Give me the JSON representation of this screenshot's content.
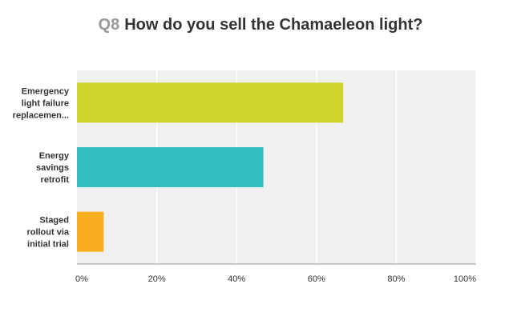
{
  "header": {
    "question_number": "Q8",
    "question_text": "How do you sell the Chamaeleon light?"
  },
  "chart_data": {
    "type": "bar",
    "orientation": "horizontal",
    "title": "Q8 How do you sell the Chamaeleon light?",
    "categories": [
      [
        "Emergency",
        "light failure",
        "replacemen..."
      ],
      [
        "Energy",
        "savings",
        "retrofit"
      ],
      [
        "Staged",
        "rollout via",
        "initial trial"
      ]
    ],
    "values": [
      66.7,
      46.7,
      6.7
    ],
    "colors": [
      "#cfd42b",
      "#33bfbf",
      "#f9ae22"
    ],
    "xlim": [
      0,
      100
    ],
    "ticks": [
      0,
      20,
      40,
      60,
      80,
      100
    ],
    "tick_labels": [
      "0%",
      "20%",
      "40%",
      "60%",
      "80%",
      "100%"
    ],
    "grid": true,
    "legend": "none",
    "plot_background": "#f0f0f0"
  }
}
